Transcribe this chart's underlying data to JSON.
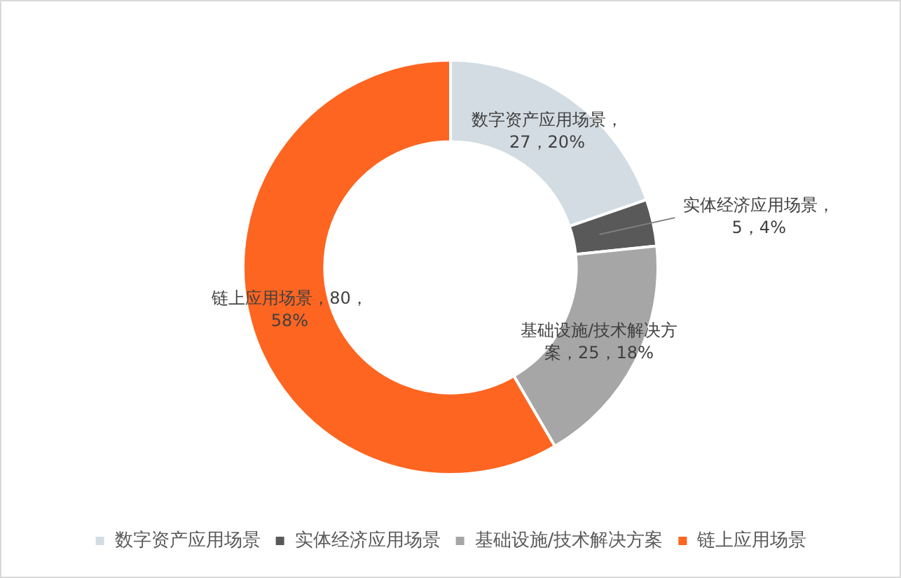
{
  "chart_data": {
    "type": "donut",
    "categories": [
      "数字资产应用场景",
      "实体经济应用场景",
      "基础设施/技术解决方案",
      "链上应用场景"
    ],
    "values": [
      27,
      5,
      25,
      80
    ],
    "colors": [
      "#d3dce2",
      "#595959",
      "#a6a6a6",
      "#fd6521"
    ],
    "legend": "bottom",
    "value_labels": [
      "数字资产应用场景，27，20%",
      "实体经济应用场景，5，4%",
      "基础设施/技术解决方案，25，18%",
      "链上应用场景，80，58%"
    ]
  }
}
